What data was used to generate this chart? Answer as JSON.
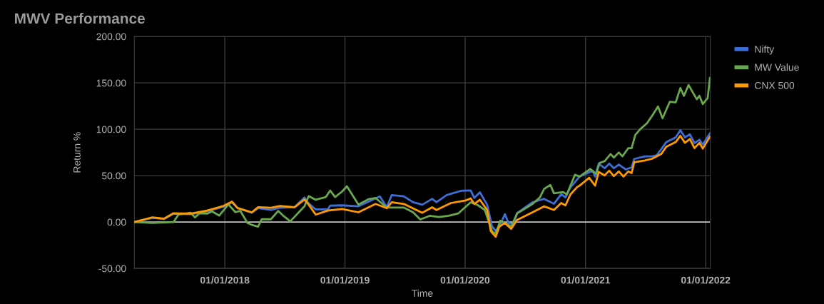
{
  "chart_data": {
    "type": "line",
    "title": "MWV Performance",
    "xlabel": "Time",
    "ylabel": "Return %",
    "xlim": [
      "2017-04-01",
      "2022-01-15"
    ],
    "ylim": [
      -50,
      200
    ],
    "xticks": [
      {
        "value": "2018-01-01",
        "label": "01/01/2018"
      },
      {
        "value": "2019-01-01",
        "label": "01/01/2019"
      },
      {
        "value": "2020-01-01",
        "label": "01/01/2020"
      },
      {
        "value": "2021-01-01",
        "label": "01/01/2021"
      },
      {
        "value": "2022-01-01",
        "label": "01/01/2022"
      }
    ],
    "yticks": [
      {
        "value": -50,
        "label": "-50.00"
      },
      {
        "value": 0,
        "label": "0.00"
      },
      {
        "value": 50,
        "label": "50.00"
      },
      {
        "value": 100,
        "label": "100.00"
      },
      {
        "value": 150,
        "label": "150.00"
      },
      {
        "value": 200,
        "label": "200.00"
      }
    ],
    "grid": true,
    "legend": "right",
    "marker": "none",
    "line_style": "solid",
    "ref_lines": [
      {
        "axis": "y",
        "value": 0,
        "color": "#ffffff"
      }
    ],
    "series": [
      {
        "name": "Nifty",
        "color": "#3d6fd6",
        "x": [
          "2017-04-01",
          "2017-05-26",
          "2017-06-30",
          "2017-07-29",
          "2017-09-19",
          "2017-11-08",
          "2017-12-28",
          "2018-01-23",
          "2018-02-09",
          "2018-03-24",
          "2018-04-12",
          "2018-05-21",
          "2018-06-18",
          "2018-08-01",
          "2018-08-31",
          "2018-09-13",
          "2018-10-04",
          "2018-11-10",
          "2018-11-17",
          "2018-12-23",
          "2019-02-11",
          "2019-04-17",
          "2019-05-08",
          "2019-05-23",
          "2019-06-29",
          "2019-07-27",
          "2019-08-24",
          "2019-09-23",
          "2019-10-06",
          "2019-11-06",
          "2019-12-19",
          "2020-01-18",
          "2020-01-29",
          "2020-02-15",
          "2020-03-08",
          "2020-03-23",
          "2020-04-03",
          "2020-04-14",
          "2020-05-01",
          "2020-05-12",
          "2020-05-27",
          "2020-06-07",
          "2020-07-24",
          "2020-08-28",
          "2020-09-27",
          "2020-10-19",
          "2020-11-01",
          "2020-11-16",
          "2020-12-14",
          "2021-01-23",
          "2021-01-30",
          "2021-02-10",
          "2021-02-28",
          "2021-03-14",
          "2021-03-28",
          "2021-04-12",
          "2021-05-03",
          "2021-05-21",
          "2021-05-29",
          "2021-06-30",
          "2021-07-22",
          "2021-08-05",
          "2021-08-19",
          "2021-09-03",
          "2021-10-02",
          "2021-10-16",
          "2021-10-30",
          "2021-11-14",
          "2021-11-28",
          "2021-12-13",
          "2021-12-23",
          "2022-01-14"
        ],
        "values": [
          0,
          4.5,
          3.2,
          9,
          8.5,
          11.5,
          16.5,
          21,
          15,
          10,
          15,
          13,
          15.5,
          16,
          26.4,
          20,
          13.6,
          13.6,
          17.7,
          18,
          17,
          27.7,
          16,
          29,
          27.7,
          21.3,
          18.7,
          25,
          21.3,
          29,
          33.6,
          34,
          26,
          32,
          18.7,
          -4.9,
          -9.5,
          -5,
          8.5,
          -1,
          -2.3,
          9.7,
          21.3,
          25,
          19.7,
          30,
          26.5,
          37.4,
          49,
          55.4,
          49,
          63,
          58,
          63,
          58,
          62,
          56.7,
          59,
          68,
          70.8,
          70.8,
          72,
          78.5,
          86,
          91.3,
          99,
          91.3,
          94.6,
          85,
          88.7,
          83.6,
          95.6
        ]
      },
      {
        "name": "MW Value",
        "color": "#6aa84f",
        "x": [
          "2017-04-01",
          "2017-05-26",
          "2017-07-29",
          "2017-08-13",
          "2017-09-19",
          "2017-10-02",
          "2017-10-17",
          "2017-11-08",
          "2017-11-23",
          "2017-12-15",
          "2018-01-12",
          "2018-02-02",
          "2018-02-17",
          "2018-03-11",
          "2018-03-24",
          "2018-04-12",
          "2018-04-23",
          "2018-05-21",
          "2018-06-12",
          "2018-06-27",
          "2018-07-19",
          "2018-08-31",
          "2018-09-13",
          "2018-10-04",
          "2018-11-04",
          "2018-11-17",
          "2018-12-02",
          "2018-12-23",
          "2019-01-07",
          "2019-02-11",
          "2019-03-13",
          "2019-04-04",
          "2019-05-08",
          "2019-06-29",
          "2019-07-27",
          "2019-08-18",
          "2019-09-15",
          "2019-10-14",
          "2019-11-12",
          "2019-12-11",
          "2020-01-18",
          "2020-02-09",
          "2020-03-01",
          "2020-03-23",
          "2020-04-03",
          "2020-04-17",
          "2020-05-05",
          "2020-05-20",
          "2020-06-07",
          "2020-07-24",
          "2020-08-15",
          "2020-08-28",
          "2020-09-16",
          "2020-09-27",
          "2020-10-25",
          "2020-11-05",
          "2020-11-30",
          "2020-12-14",
          "2021-01-15",
          "2021-02-02",
          "2021-02-13",
          "2021-02-28",
          "2021-03-18",
          "2021-03-28",
          "2021-04-12",
          "2021-04-23",
          "2021-05-11",
          "2021-05-21",
          "2021-06-01",
          "2021-06-16",
          "2021-07-07",
          "2021-07-22",
          "2021-08-09",
          "2021-08-23",
          "2021-09-14",
          "2021-10-02",
          "2021-10-16",
          "2021-10-27",
          "2021-11-10",
          "2021-12-05",
          "2021-12-13",
          "2021-12-23",
          "2022-01-07",
          "2022-01-14"
        ],
        "values": [
          0,
          -1,
          0,
          8,
          10,
          5,
          9.5,
          9,
          11.5,
          7,
          19,
          10.7,
          12,
          -1,
          -3,
          -5,
          3,
          3,
          12,
          7,
          0.8,
          17,
          28,
          24,
          27,
          34,
          27,
          32.8,
          38.6,
          18.7,
          24.6,
          25.9,
          15.6,
          15.6,
          10.5,
          2.8,
          6.7,
          5.4,
          6.7,
          9.2,
          21.3,
          18.2,
          13,
          -10,
          -12.6,
          1.5,
          -1.8,
          -4.9,
          9.2,
          19.5,
          26.4,
          35.6,
          40,
          31,
          32.3,
          29.7,
          51,
          49,
          57.2,
          52,
          63.8,
          65.6,
          73.3,
          69.5,
          75,
          70.8,
          79.7,
          79.7,
          93.8,
          100,
          106.7,
          114.4,
          124.6,
          111.8,
          129.7,
          129,
          144.4,
          136,
          147.7,
          132.3,
          136,
          127.2,
          133.6,
          155.4
        ]
      },
      {
        "name": "CNX 500",
        "color": "#ff9900",
        "x": [
          "2017-04-01",
          "2017-05-26",
          "2017-06-30",
          "2017-07-29",
          "2017-09-19",
          "2017-11-08",
          "2017-12-28",
          "2018-01-23",
          "2018-02-09",
          "2018-03-24",
          "2018-04-12",
          "2018-05-21",
          "2018-06-18",
          "2018-08-01",
          "2018-08-31",
          "2018-09-13",
          "2018-10-04",
          "2018-11-10",
          "2018-12-23",
          "2019-02-11",
          "2019-04-04",
          "2019-05-08",
          "2019-05-23",
          "2019-06-29",
          "2019-08-24",
          "2019-09-23",
          "2019-10-06",
          "2019-11-19",
          "2020-01-03",
          "2020-01-18",
          "2020-01-29",
          "2020-02-15",
          "2020-03-08",
          "2020-03-19",
          "2020-04-03",
          "2020-04-14",
          "2020-05-01",
          "2020-05-20",
          "2020-06-07",
          "2020-07-24",
          "2020-08-28",
          "2020-09-27",
          "2020-10-19",
          "2020-11-01",
          "2020-11-16",
          "2020-12-07",
          "2020-12-14",
          "2021-01-12",
          "2021-01-30",
          "2021-02-10",
          "2021-02-28",
          "2021-03-14",
          "2021-03-28",
          "2021-04-12",
          "2021-04-26",
          "2021-05-11",
          "2021-05-21",
          "2021-05-29",
          "2021-06-30",
          "2021-07-22",
          "2021-08-19",
          "2021-09-03",
          "2021-10-02",
          "2021-10-16",
          "2021-10-30",
          "2021-11-14",
          "2021-11-28",
          "2021-12-13",
          "2021-12-23",
          "2022-01-14"
        ],
        "values": [
          0,
          5.1,
          3.6,
          9.5,
          9,
          12.3,
          17.4,
          22,
          15,
          10.5,
          16,
          15.4,
          17.4,
          16,
          24.3,
          18.7,
          8,
          12.3,
          14,
          10.5,
          19.5,
          14.9,
          21.3,
          19.5,
          10,
          15.9,
          13,
          20.5,
          23.3,
          25.4,
          19.5,
          24,
          13,
          -9.7,
          -15.9,
          -5,
          -1,
          -7.4,
          2.3,
          10.5,
          16.9,
          13,
          20.5,
          18,
          29.7,
          37.9,
          39.2,
          47.7,
          39.2,
          54,
          50.3,
          55.4,
          49.5,
          54.6,
          49,
          54.6,
          52.8,
          64.4,
          66.4,
          68.2,
          73.3,
          81,
          86.2,
          93,
          85.4,
          89.5,
          79.7,
          85.4,
          79.2,
          92
        ]
      }
    ]
  }
}
